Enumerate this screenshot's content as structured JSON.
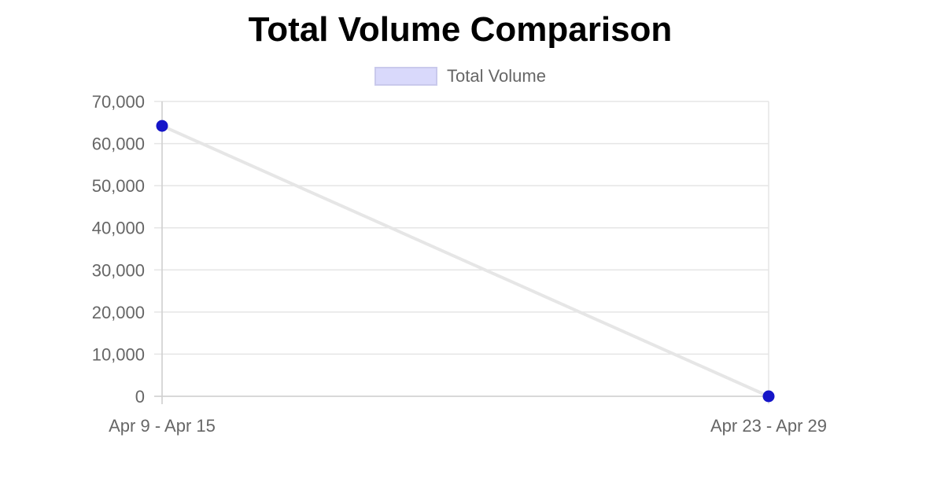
{
  "chart_data": {
    "type": "line",
    "title": "Total Volume Comparison",
    "categories": [
      "Apr 9 - Apr 15",
      "Apr 23 - Apr 29"
    ],
    "series": [
      {
        "name": "Total Volume",
        "values": [
          64200,
          0
        ]
      }
    ],
    "ylim": [
      0,
      70000
    ],
    "y_ticks": [
      0,
      10000,
      20000,
      30000,
      40000,
      50000,
      60000,
      70000
    ],
    "y_tick_labels": [
      "0",
      "10,000",
      "20,000",
      "30,000",
      "40,000",
      "50,000",
      "60,000",
      "70,000"
    ],
    "grid": true,
    "legend_position": "top",
    "colors": {
      "line": "#e6e6e6",
      "point": "#1515c8",
      "legend_fill": "#d9d9fb",
      "legend_border": "#c9c9ec",
      "grid": "#e5e5e5",
      "tick_text": "#666666"
    }
  }
}
